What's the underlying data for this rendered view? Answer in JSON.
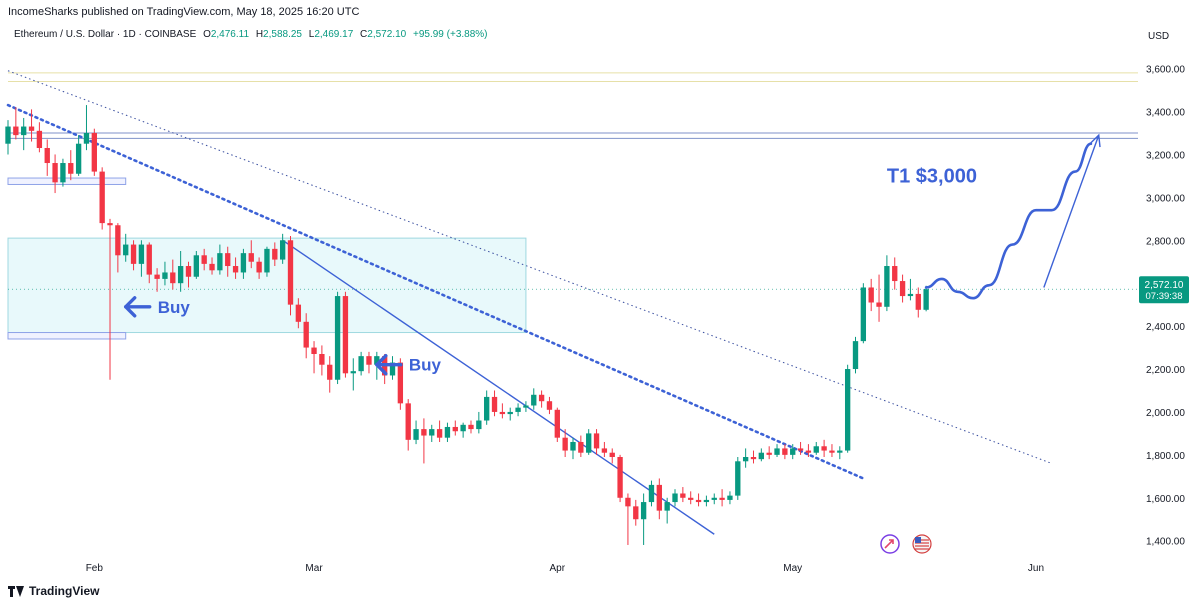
{
  "header": {
    "published": "IncomeSharks published on TradingView.com, May 18, 2025 16:20 UTC"
  },
  "legend": {
    "symbol": "Ethereum / U.S. Dollar · 1D · COINBASE",
    "o_label": "O",
    "o": "2,476.11",
    "h_label": "H",
    "h": "2,588.25",
    "l_label": "L",
    "l": "2,469.17",
    "c_label": "C",
    "c": "2,572.10",
    "change": "+95.99 (+3.88%)"
  },
  "currency": "USD",
  "price_tag": {
    "price": "2,572.10",
    "countdown": "07:39:38"
  },
  "footer": {
    "brand": "TradingView"
  },
  "colors": {
    "up": "#089981",
    "down": "#f23645",
    "annotation": "#3d62d6",
    "zone_fill": "#e0f7fa",
    "zone_stroke": "#9fd8e0"
  },
  "annotations": {
    "target": "T1 $3,000",
    "buy_1": "Buy",
    "buy_2": "Buy"
  },
  "icons": [
    "arrow-left-icon",
    "arrow-left-icon",
    "dividend-event-icon",
    "us-flag-event-icon",
    "tradingview-logo-icon"
  ],
  "chart_data": {
    "type": "candlestick",
    "title": "Ethereum / U.S. Dollar · 1D · COINBASE",
    "x_axis": {
      "ticks": [
        {
          "label": "Feb",
          "date": "2025-02-01"
        },
        {
          "label": "Mar",
          "date": "2025-03-01"
        },
        {
          "label": "Apr",
          "date": "2025-04-01"
        },
        {
          "label": "May",
          "date": "2025-05-01"
        },
        {
          "label": "Jun",
          "date": "2025-06-01"
        }
      ],
      "range": [
        "2025-01-21",
        "2025-06-14"
      ]
    },
    "y_axis": {
      "ticks": [
        1400,
        1600,
        1800,
        2000,
        2200,
        2400,
        2600,
        2800,
        3000,
        3200,
        3400,
        3600
      ],
      "tick_labels": [
        "1,400.00",
        "1,600.00",
        "1,800.00",
        "2,000.00",
        "2,200.00",
        "2,400.00",
        "2,600.00",
        "2,800.00",
        "3,000.00",
        "3,200.00",
        "3,400.00",
        "3,600.00"
      ],
      "range": [
        1310,
        3710
      ]
    },
    "grid": false,
    "candles": [
      {
        "d": "2025-01-21",
        "o": 3250,
        "h": 3360,
        "l": 3200,
        "c": 3330
      },
      {
        "d": "2025-01-22",
        "o": 3330,
        "h": 3420,
        "l": 3270,
        "c": 3290
      },
      {
        "d": "2025-01-23",
        "o": 3290,
        "h": 3370,
        "l": 3220,
        "c": 3330
      },
      {
        "d": "2025-01-24",
        "o": 3330,
        "h": 3410,
        "l": 3260,
        "c": 3310
      },
      {
        "d": "2025-01-25",
        "o": 3310,
        "h": 3350,
        "l": 3210,
        "c": 3230
      },
      {
        "d": "2025-01-26",
        "o": 3230,
        "h": 3270,
        "l": 3100,
        "c": 3160
      },
      {
        "d": "2025-01-27",
        "o": 3160,
        "h": 3200,
        "l": 3020,
        "c": 3070
      },
      {
        "d": "2025-01-28",
        "o": 3070,
        "h": 3180,
        "l": 3050,
        "c": 3160
      },
      {
        "d": "2025-01-29",
        "o": 3160,
        "h": 3220,
        "l": 3080,
        "c": 3110
      },
      {
        "d": "2025-01-30",
        "o": 3110,
        "h": 3290,
        "l": 3100,
        "c": 3250
      },
      {
        "d": "2025-01-31",
        "o": 3250,
        "h": 3430,
        "l": 3220,
        "c": 3300
      },
      {
        "d": "2025-02-01",
        "o": 3300,
        "h": 3320,
        "l": 3100,
        "c": 3120
      },
      {
        "d": "2025-02-02",
        "o": 3120,
        "h": 3140,
        "l": 2850,
        "c": 2880
      },
      {
        "d": "2025-02-03",
        "o": 2880,
        "h": 2900,
        "l": 2150,
        "c": 2870
      },
      {
        "d": "2025-02-04",
        "o": 2870,
        "h": 2880,
        "l": 2650,
        "c": 2730
      },
      {
        "d": "2025-02-05",
        "o": 2730,
        "h": 2830,
        "l": 2700,
        "c": 2780
      },
      {
        "d": "2025-02-06",
        "o": 2780,
        "h": 2800,
        "l": 2660,
        "c": 2690
      },
      {
        "d": "2025-02-07",
        "o": 2690,
        "h": 2800,
        "l": 2630,
        "c": 2780
      },
      {
        "d": "2025-02-08",
        "o": 2780,
        "h": 2790,
        "l": 2600,
        "c": 2640
      },
      {
        "d": "2025-02-09",
        "o": 2640,
        "h": 2670,
        "l": 2560,
        "c": 2620
      },
      {
        "d": "2025-02-10",
        "o": 2620,
        "h": 2700,
        "l": 2590,
        "c": 2650
      },
      {
        "d": "2025-02-11",
        "o": 2650,
        "h": 2710,
        "l": 2570,
        "c": 2600
      },
      {
        "d": "2025-02-12",
        "o": 2600,
        "h": 2750,
        "l": 2560,
        "c": 2680
      },
      {
        "d": "2025-02-13",
        "o": 2680,
        "h": 2700,
        "l": 2580,
        "c": 2630
      },
      {
        "d": "2025-02-14",
        "o": 2630,
        "h": 2750,
        "l": 2620,
        "c": 2730
      },
      {
        "d": "2025-02-15",
        "o": 2730,
        "h": 2760,
        "l": 2660,
        "c": 2690
      },
      {
        "d": "2025-02-16",
        "o": 2690,
        "h": 2720,
        "l": 2640,
        "c": 2660
      },
      {
        "d": "2025-02-17",
        "o": 2660,
        "h": 2780,
        "l": 2640,
        "c": 2740
      },
      {
        "d": "2025-02-18",
        "o": 2740,
        "h": 2770,
        "l": 2630,
        "c": 2680
      },
      {
        "d": "2025-02-19",
        "o": 2680,
        "h": 2720,
        "l": 2620,
        "c": 2650
      },
      {
        "d": "2025-02-20",
        "o": 2650,
        "h": 2760,
        "l": 2620,
        "c": 2740
      },
      {
        "d": "2025-02-21",
        "o": 2740,
        "h": 2800,
        "l": 2670,
        "c": 2700
      },
      {
        "d": "2025-02-22",
        "o": 2700,
        "h": 2720,
        "l": 2620,
        "c": 2650
      },
      {
        "d": "2025-02-23",
        "o": 2650,
        "h": 2770,
        "l": 2630,
        "c": 2760
      },
      {
        "d": "2025-02-24",
        "o": 2760,
        "h": 2790,
        "l": 2680,
        "c": 2710
      },
      {
        "d": "2025-02-25",
        "o": 2710,
        "h": 2830,
        "l": 2690,
        "c": 2800
      },
      {
        "d": "2025-02-26",
        "o": 2800,
        "h": 2820,
        "l": 2450,
        "c": 2500
      },
      {
        "d": "2025-02-27",
        "o": 2500,
        "h": 2530,
        "l": 2390,
        "c": 2420
      },
      {
        "d": "2025-02-28",
        "o": 2420,
        "h": 2460,
        "l": 2250,
        "c": 2300
      },
      {
        "d": "2025-03-01",
        "o": 2300,
        "h": 2330,
        "l": 2180,
        "c": 2270
      },
      {
        "d": "2025-03-02",
        "o": 2270,
        "h": 2310,
        "l": 2170,
        "c": 2220
      },
      {
        "d": "2025-03-03",
        "o": 2220,
        "h": 2260,
        "l": 2090,
        "c": 2150
      },
      {
        "d": "2025-03-04",
        "o": 2150,
        "h": 2560,
        "l": 2130,
        "c": 2540
      },
      {
        "d": "2025-03-05",
        "o": 2540,
        "h": 2560,
        "l": 2160,
        "c": 2180
      },
      {
        "d": "2025-03-06",
        "o": 2180,
        "h": 2250,
        "l": 2100,
        "c": 2190
      },
      {
        "d": "2025-03-07",
        "o": 2190,
        "h": 2280,
        "l": 2170,
        "c": 2260
      },
      {
        "d": "2025-03-08",
        "o": 2260,
        "h": 2280,
        "l": 2180,
        "c": 2220
      },
      {
        "d": "2025-03-09",
        "o": 2220,
        "h": 2280,
        "l": 2150,
        "c": 2260
      },
      {
        "d": "2025-03-10",
        "o": 2260,
        "h": 2270,
        "l": 2130,
        "c": 2170
      },
      {
        "d": "2025-03-11",
        "o": 2170,
        "h": 2260,
        "l": 2150,
        "c": 2230
      },
      {
        "d": "2025-03-12",
        "o": 2230,
        "h": 2250,
        "l": 2010,
        "c": 2040
      },
      {
        "d": "2025-03-13",
        "o": 2040,
        "h": 2060,
        "l": 1820,
        "c": 1870
      },
      {
        "d": "2025-03-14",
        "o": 1870,
        "h": 1960,
        "l": 1850,
        "c": 1920
      },
      {
        "d": "2025-03-15",
        "o": 1920,
        "h": 1970,
        "l": 1760,
        "c": 1890
      },
      {
        "d": "2025-03-16",
        "o": 1890,
        "h": 1940,
        "l": 1860,
        "c": 1920
      },
      {
        "d": "2025-03-17",
        "o": 1920,
        "h": 1960,
        "l": 1860,
        "c": 1880
      },
      {
        "d": "2025-03-18",
        "o": 1880,
        "h": 1950,
        "l": 1860,
        "c": 1930
      },
      {
        "d": "2025-03-19",
        "o": 1930,
        "h": 1960,
        "l": 1890,
        "c": 1910
      },
      {
        "d": "2025-03-20",
        "o": 1910,
        "h": 1950,
        "l": 1880,
        "c": 1940
      },
      {
        "d": "2025-03-21",
        "o": 1940,
        "h": 1960,
        "l": 1900,
        "c": 1920
      },
      {
        "d": "2025-03-22",
        "o": 1920,
        "h": 2000,
        "l": 1900,
        "c": 1960
      },
      {
        "d": "2025-03-23",
        "o": 1960,
        "h": 2100,
        "l": 1940,
        "c": 2070
      },
      {
        "d": "2025-03-24",
        "o": 2070,
        "h": 2100,
        "l": 1980,
        "c": 2000
      },
      {
        "d": "2025-03-25",
        "o": 2000,
        "h": 2040,
        "l": 1970,
        "c": 1990
      },
      {
        "d": "2025-03-26",
        "o": 1990,
        "h": 2020,
        "l": 1960,
        "c": 2000
      },
      {
        "d": "2025-03-27",
        "o": 2000,
        "h": 2040,
        "l": 1980,
        "c": 2020
      },
      {
        "d": "2025-03-28",
        "o": 2020,
        "h": 2050,
        "l": 2000,
        "c": 2030
      },
      {
        "d": "2025-03-29",
        "o": 2030,
        "h": 2110,
        "l": 2010,
        "c": 2080
      },
      {
        "d": "2025-03-30",
        "o": 2080,
        "h": 2100,
        "l": 2020,
        "c": 2050
      },
      {
        "d": "2025-03-31",
        "o": 2050,
        "h": 2070,
        "l": 1990,
        "c": 2010
      },
      {
        "d": "2025-04-01",
        "o": 2010,
        "h": 2020,
        "l": 1860,
        "c": 1880
      },
      {
        "d": "2025-04-02",
        "o": 1880,
        "h": 1920,
        "l": 1790,
        "c": 1820
      },
      {
        "d": "2025-04-03",
        "o": 1820,
        "h": 1880,
        "l": 1780,
        "c": 1860
      },
      {
        "d": "2025-04-04",
        "o": 1860,
        "h": 1890,
        "l": 1790,
        "c": 1810
      },
      {
        "d": "2025-04-05",
        "o": 1810,
        "h": 1920,
        "l": 1800,
        "c": 1900
      },
      {
        "d": "2025-04-06",
        "o": 1900,
        "h": 1920,
        "l": 1800,
        "c": 1830
      },
      {
        "d": "2025-04-07",
        "o": 1830,
        "h": 1860,
        "l": 1790,
        "c": 1810
      },
      {
        "d": "2025-04-08",
        "o": 1810,
        "h": 1830,
        "l": 1760,
        "c": 1790
      },
      {
        "d": "2025-04-09",
        "o": 1790,
        "h": 1800,
        "l": 1580,
        "c": 1600
      },
      {
        "d": "2025-04-10",
        "o": 1600,
        "h": 1620,
        "l": 1380,
        "c": 1560
      },
      {
        "d": "2025-04-11",
        "o": 1560,
        "h": 1590,
        "l": 1470,
        "c": 1500
      },
      {
        "d": "2025-04-12",
        "o": 1500,
        "h": 1620,
        "l": 1380,
        "c": 1580
      },
      {
        "d": "2025-04-13",
        "o": 1580,
        "h": 1680,
        "l": 1560,
        "c": 1660
      },
      {
        "d": "2025-04-14",
        "o": 1660,
        "h": 1690,
        "l": 1500,
        "c": 1540
      },
      {
        "d": "2025-04-15",
        "o": 1540,
        "h": 1600,
        "l": 1480,
        "c": 1580
      },
      {
        "d": "2025-04-16",
        "o": 1580,
        "h": 1640,
        "l": 1560,
        "c": 1620
      },
      {
        "d": "2025-04-17",
        "o": 1620,
        "h": 1650,
        "l": 1580,
        "c": 1600
      },
      {
        "d": "2025-04-18",
        "o": 1600,
        "h": 1630,
        "l": 1570,
        "c": 1590
      },
      {
        "d": "2025-04-19",
        "o": 1590,
        "h": 1620,
        "l": 1560,
        "c": 1580
      },
      {
        "d": "2025-04-20",
        "o": 1580,
        "h": 1610,
        "l": 1560,
        "c": 1590
      },
      {
        "d": "2025-04-21",
        "o": 1590,
        "h": 1620,
        "l": 1570,
        "c": 1600
      },
      {
        "d": "2025-04-22",
        "o": 1600,
        "h": 1640,
        "l": 1560,
        "c": 1590
      },
      {
        "d": "2025-04-23",
        "o": 1590,
        "h": 1630,
        "l": 1570,
        "c": 1610
      },
      {
        "d": "2025-04-24",
        "o": 1610,
        "h": 1790,
        "l": 1590,
        "c": 1770
      },
      {
        "d": "2025-04-25",
        "o": 1770,
        "h": 1830,
        "l": 1740,
        "c": 1790
      },
      {
        "d": "2025-04-26",
        "o": 1790,
        "h": 1820,
        "l": 1760,
        "c": 1780
      },
      {
        "d": "2025-04-27",
        "o": 1780,
        "h": 1830,
        "l": 1770,
        "c": 1810
      },
      {
        "d": "2025-04-28",
        "o": 1810,
        "h": 1840,
        "l": 1780,
        "c": 1800
      },
      {
        "d": "2025-04-29",
        "o": 1800,
        "h": 1850,
        "l": 1790,
        "c": 1830
      },
      {
        "d": "2025-04-30",
        "o": 1830,
        "h": 1850,
        "l": 1780,
        "c": 1800
      },
      {
        "d": "2025-05-01",
        "o": 1800,
        "h": 1850,
        "l": 1780,
        "c": 1830
      },
      {
        "d": "2025-05-02",
        "o": 1830,
        "h": 1860,
        "l": 1800,
        "c": 1820
      },
      {
        "d": "2025-05-03",
        "o": 1820,
        "h": 1850,
        "l": 1790,
        "c": 1810
      },
      {
        "d": "2025-05-04",
        "o": 1810,
        "h": 1860,
        "l": 1800,
        "c": 1840
      },
      {
        "d": "2025-05-05",
        "o": 1840,
        "h": 1870,
        "l": 1790,
        "c": 1820
      },
      {
        "d": "2025-05-06",
        "o": 1820,
        "h": 1850,
        "l": 1790,
        "c": 1810
      },
      {
        "d": "2025-05-07",
        "o": 1810,
        "h": 1840,
        "l": 1780,
        "c": 1820
      },
      {
        "d": "2025-05-08",
        "o": 1820,
        "h": 2220,
        "l": 1810,
        "c": 2200
      },
      {
        "d": "2025-05-09",
        "o": 2200,
        "h": 2350,
        "l": 2180,
        "c": 2330
      },
      {
        "d": "2025-05-10",
        "o": 2330,
        "h": 2600,
        "l": 2320,
        "c": 2580
      },
      {
        "d": "2025-05-11",
        "o": 2580,
        "h": 2620,
        "l": 2470,
        "c": 2510
      },
      {
        "d": "2025-05-12",
        "o": 2510,
        "h": 2640,
        "l": 2420,
        "c": 2490
      },
      {
        "d": "2025-05-13",
        "o": 2490,
        "h": 2730,
        "l": 2470,
        "c": 2680
      },
      {
        "d": "2025-05-14",
        "o": 2680,
        "h": 2720,
        "l": 2570,
        "c": 2610
      },
      {
        "d": "2025-05-15",
        "o": 2610,
        "h": 2640,
        "l": 2510,
        "c": 2540
      },
      {
        "d": "2025-05-16",
        "o": 2540,
        "h": 2620,
        "l": 2520,
        "c": 2550
      },
      {
        "d": "2025-05-17",
        "o": 2550,
        "h": 2580,
        "l": 2440,
        "c": 2476
      },
      {
        "d": "2025-05-18",
        "o": 2476,
        "h": 2588,
        "l": 2469,
        "c": 2572
      }
    ],
    "drawings": {
      "horizontal_lines": [
        3580,
        3540,
        3300,
        3275
      ],
      "zones": [
        {
          "label": "zone",
          "from": "2025-01-21",
          "to": "2025-03-28",
          "low": 2370,
          "high": 2810
        },
        {
          "from": "2025-01-21",
          "to": "2025-02-05",
          "low": 3060,
          "high": 3090
        },
        {
          "from": "2025-01-21",
          "to": "2025-02-05",
          "low": 2340,
          "high": 2370
        }
      ],
      "trendlines": [
        {
          "style": "dotted-thin",
          "from": {
            "d": "2025-01-21",
            "p": 3590
          },
          "to": {
            "d": "2025-06-03",
            "p": 1760
          }
        },
        {
          "style": "dotted-thick",
          "from": {
            "d": "2025-01-21",
            "p": 3430
          },
          "to": {
            "d": "2025-05-10",
            "p": 1690
          }
        },
        {
          "style": "solid",
          "from": {
            "d": "2025-02-25",
            "p": 2800
          },
          "to": {
            "d": "2025-04-21",
            "p": 1430
          }
        }
      ],
      "projection_path": [
        {
          "d": "2025-05-18",
          "p": 2580
        },
        {
          "d": "2025-05-20",
          "p": 2620
        },
        {
          "d": "2025-05-22",
          "p": 2560
        },
        {
          "d": "2025-05-24",
          "p": 2530
        },
        {
          "d": "2025-05-26",
          "p": 2590
        },
        {
          "d": "2025-05-29",
          "p": 2780
        },
        {
          "d": "2025-06-01",
          "p": 2940
        },
        {
          "d": "2025-06-03",
          "p": 2940
        },
        {
          "d": "2025-06-06",
          "p": 3120
        },
        {
          "d": "2025-06-08",
          "p": 3250
        }
      ],
      "target_arrow": {
        "from": {
          "d": "2025-06-02",
          "p": 2580
        },
        "to": {
          "d": "2025-06-09",
          "p": 3290
        }
      },
      "buy_markers": [
        {
          "d": "2025-02-05",
          "p": 2490
        },
        {
          "d": "2025-03-09",
          "p": 2220
        }
      ]
    }
  }
}
